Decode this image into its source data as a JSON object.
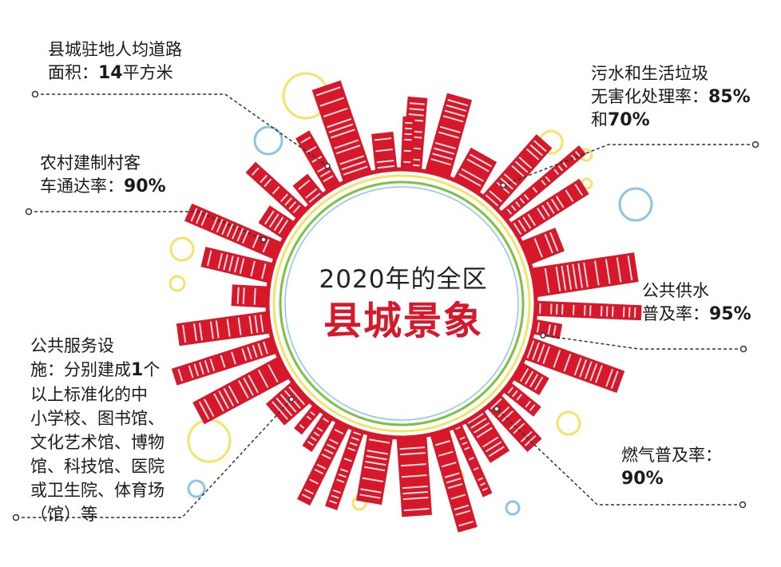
{
  "center": {
    "title": "2020年的全区",
    "main": "县城景象"
  },
  "stats": {
    "road_area": {
      "line1": "县城驻地人均道路",
      "line2_prefix": "面积：",
      "value": "14",
      "unit": "平方米"
    },
    "village_bus": {
      "line1": "农村建制村客",
      "line2_prefix": "车通达率：",
      "value": "90%"
    },
    "facilities": {
      "line1": "公共服务设",
      "line2_prefix": "施：分别建成",
      "value": "1",
      "line2_suffix": "个",
      "line3": "以上标准化的中",
      "line4": "小学校、图书馆、",
      "line5": "文化艺术馆、博物",
      "line6": "馆、科技馆、医院",
      "line7": "或卫生院、体育场",
      "line8": "（馆）等"
    },
    "sewage": {
      "line1": "污水和生活垃圾",
      "line2_prefix": "无害化处理率：",
      "value": "85%",
      "line3_prefix": "和",
      "value2": "70%"
    },
    "water": {
      "line1": "公共供水",
      "line2_prefix": "普及率：",
      "value": "95%"
    },
    "gas": {
      "line1": "燃气普及率：",
      "value": "90%"
    }
  },
  "colors": {
    "accent": "#d6182a",
    "ring_green": "#7cc242",
    "ring_yellow": "#f3e36a",
    "ring_blue": "#8dc4ea"
  }
}
